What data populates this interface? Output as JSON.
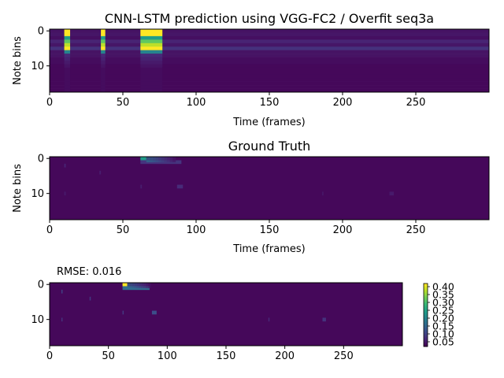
{
  "chart_data": [
    {
      "type": "heatmap",
      "title": "CNN-LSTM prediction using VGG-FC2 / Overfit seq3a",
      "xlabel": "Time (frames)",
      "ylabel": "Note bins",
      "xlim": [
        0,
        300
      ],
      "ylim": [
        18,
        0
      ],
      "xticks": [
        "0",
        "50",
        "100",
        "150",
        "200",
        "250"
      ],
      "yticks": [
        "0",
        "10"
      ],
      "row_base": [
        0.05,
        0.06,
        0.04,
        0.1,
        0.06,
        0.14,
        0.05,
        0.05,
        0.03,
        0.03,
        0.02,
        0.02,
        0.02,
        0.02,
        0.02,
        0.02,
        0.02,
        0.02
      ],
      "activations": [
        {
          "start": 10,
          "end": 14,
          "rows": [
            0,
            1,
            2,
            3,
            4,
            5,
            6
          ]
        },
        {
          "start": 35,
          "end": 38,
          "rows": [
            0,
            1,
            2,
            3,
            4,
            5,
            6
          ]
        },
        {
          "start": 62,
          "end": 77,
          "rows": [
            0,
            1,
            2,
            3,
            4,
            5,
            6
          ]
        }
      ]
    },
    {
      "type": "heatmap",
      "title": "Ground Truth",
      "xlabel": "Time (frames)",
      "ylabel": "Note bins",
      "xlim": [
        0,
        300
      ],
      "ylim": [
        18,
        0
      ],
      "xticks": [
        "0",
        "50",
        "100",
        "150",
        "200",
        "250"
      ],
      "yticks": [
        "0",
        "10"
      ],
      "notes": [
        {
          "start": 62,
          "end": 66,
          "row": 0,
          "value": 0.55
        },
        {
          "start": 62,
          "end": 90,
          "row": 1,
          "value": 0.15
        },
        {
          "start": 10,
          "end": 11,
          "row": 2,
          "value": 0.1
        },
        {
          "start": 34,
          "end": 35,
          "row": 4,
          "value": 0.08
        },
        {
          "start": 87,
          "end": 91,
          "row": 8,
          "value": 0.12
        },
        {
          "start": 62,
          "end": 63,
          "row": 8,
          "value": 0.08
        },
        {
          "start": 10,
          "end": 11,
          "row": 10,
          "value": 0.07
        },
        {
          "start": 186,
          "end": 187,
          "row": 10,
          "value": 0.06
        },
        {
          "start": 232,
          "end": 235,
          "row": 10,
          "value": 0.07
        }
      ]
    },
    {
      "type": "heatmap",
      "title": "",
      "annotation": "RMSE: 0.016",
      "xlabel": "",
      "ylabel": "",
      "xlim": [
        0,
        300
      ],
      "ylim": [
        18,
        0
      ],
      "xticks": [
        "0",
        "50",
        "100",
        "150",
        "200",
        "250"
      ],
      "yticks": [
        "0",
        "10"
      ],
      "colorbar": {
        "ticks": [
          "0.05",
          "0.10",
          "0.15",
          "0.20",
          "0.25",
          "0.30",
          "0.35",
          "0.40"
        ],
        "min": 0.02,
        "max": 0.42
      },
      "notes": [
        {
          "start": 62,
          "end": 66,
          "row": 0,
          "value": 0.42
        },
        {
          "start": 62,
          "end": 85,
          "row": 1,
          "value": 0.15
        },
        {
          "start": 10,
          "end": 11,
          "row": 2,
          "value": 0.08
        },
        {
          "start": 34,
          "end": 35,
          "row": 4,
          "value": 0.07
        },
        {
          "start": 87,
          "end": 91,
          "row": 8,
          "value": 0.1
        },
        {
          "start": 62,
          "end": 63,
          "row": 8,
          "value": 0.07
        },
        {
          "start": 10,
          "end": 11,
          "row": 10,
          "value": 0.06
        },
        {
          "start": 186,
          "end": 187,
          "row": 10,
          "value": 0.05
        },
        {
          "start": 232,
          "end": 235,
          "row": 10,
          "value": 0.06
        }
      ]
    }
  ]
}
